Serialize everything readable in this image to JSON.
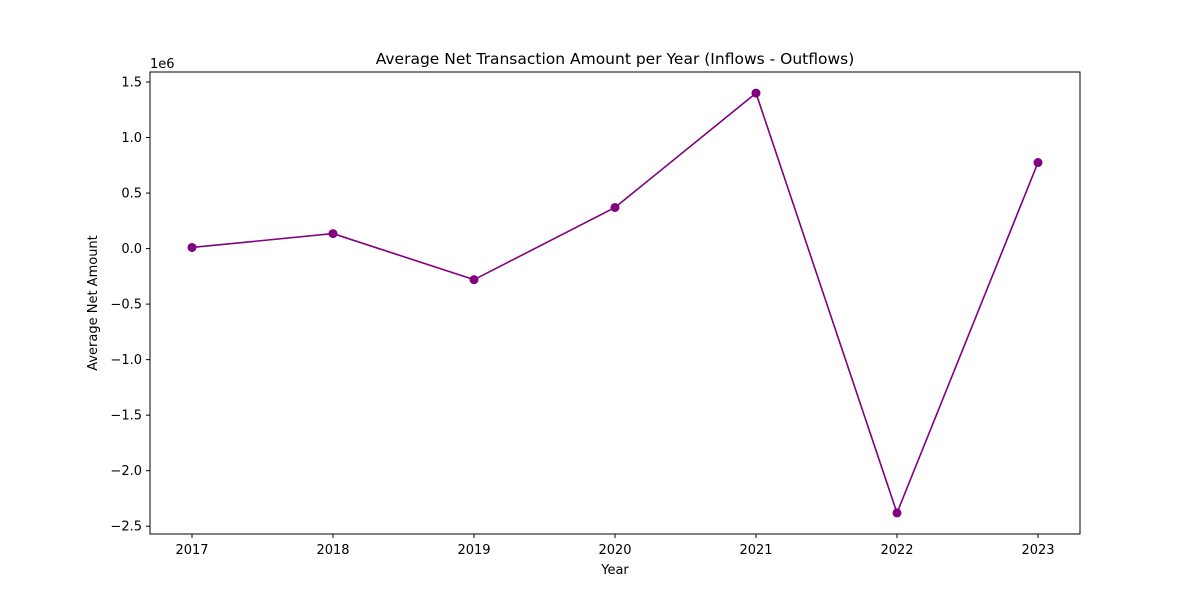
{
  "chart_data": {
    "type": "line",
    "title": "Average Net Transaction Amount per Year (Inflows - Outflows)",
    "xlabel": "Year",
    "ylabel": "Average Net Amount",
    "y_offset_label": "1e6",
    "x": [
      "2017",
      "2018",
      "2019",
      "2020",
      "2021",
      "2022",
      "2023"
    ],
    "series": [
      {
        "values": [
          10000,
          135000,
          -280000,
          370000,
          1400000,
          -2380000,
          775000
        ],
        "color": "#800080",
        "marker": "circle"
      }
    ],
    "ylim": [
      -2570000,
      1590000
    ],
    "yticks": [
      1500000,
      1000000,
      500000,
      0,
      -500000,
      -1000000,
      -1500000,
      -2000000,
      -2500000
    ],
    "ytick_labels": [
      "1.5",
      "1.0",
      "0.5",
      "0.0",
      "−0.5",
      "−1.0",
      "−1.5",
      "−2.0",
      "−2.5"
    ],
    "grid": false,
    "legend": "none"
  }
}
